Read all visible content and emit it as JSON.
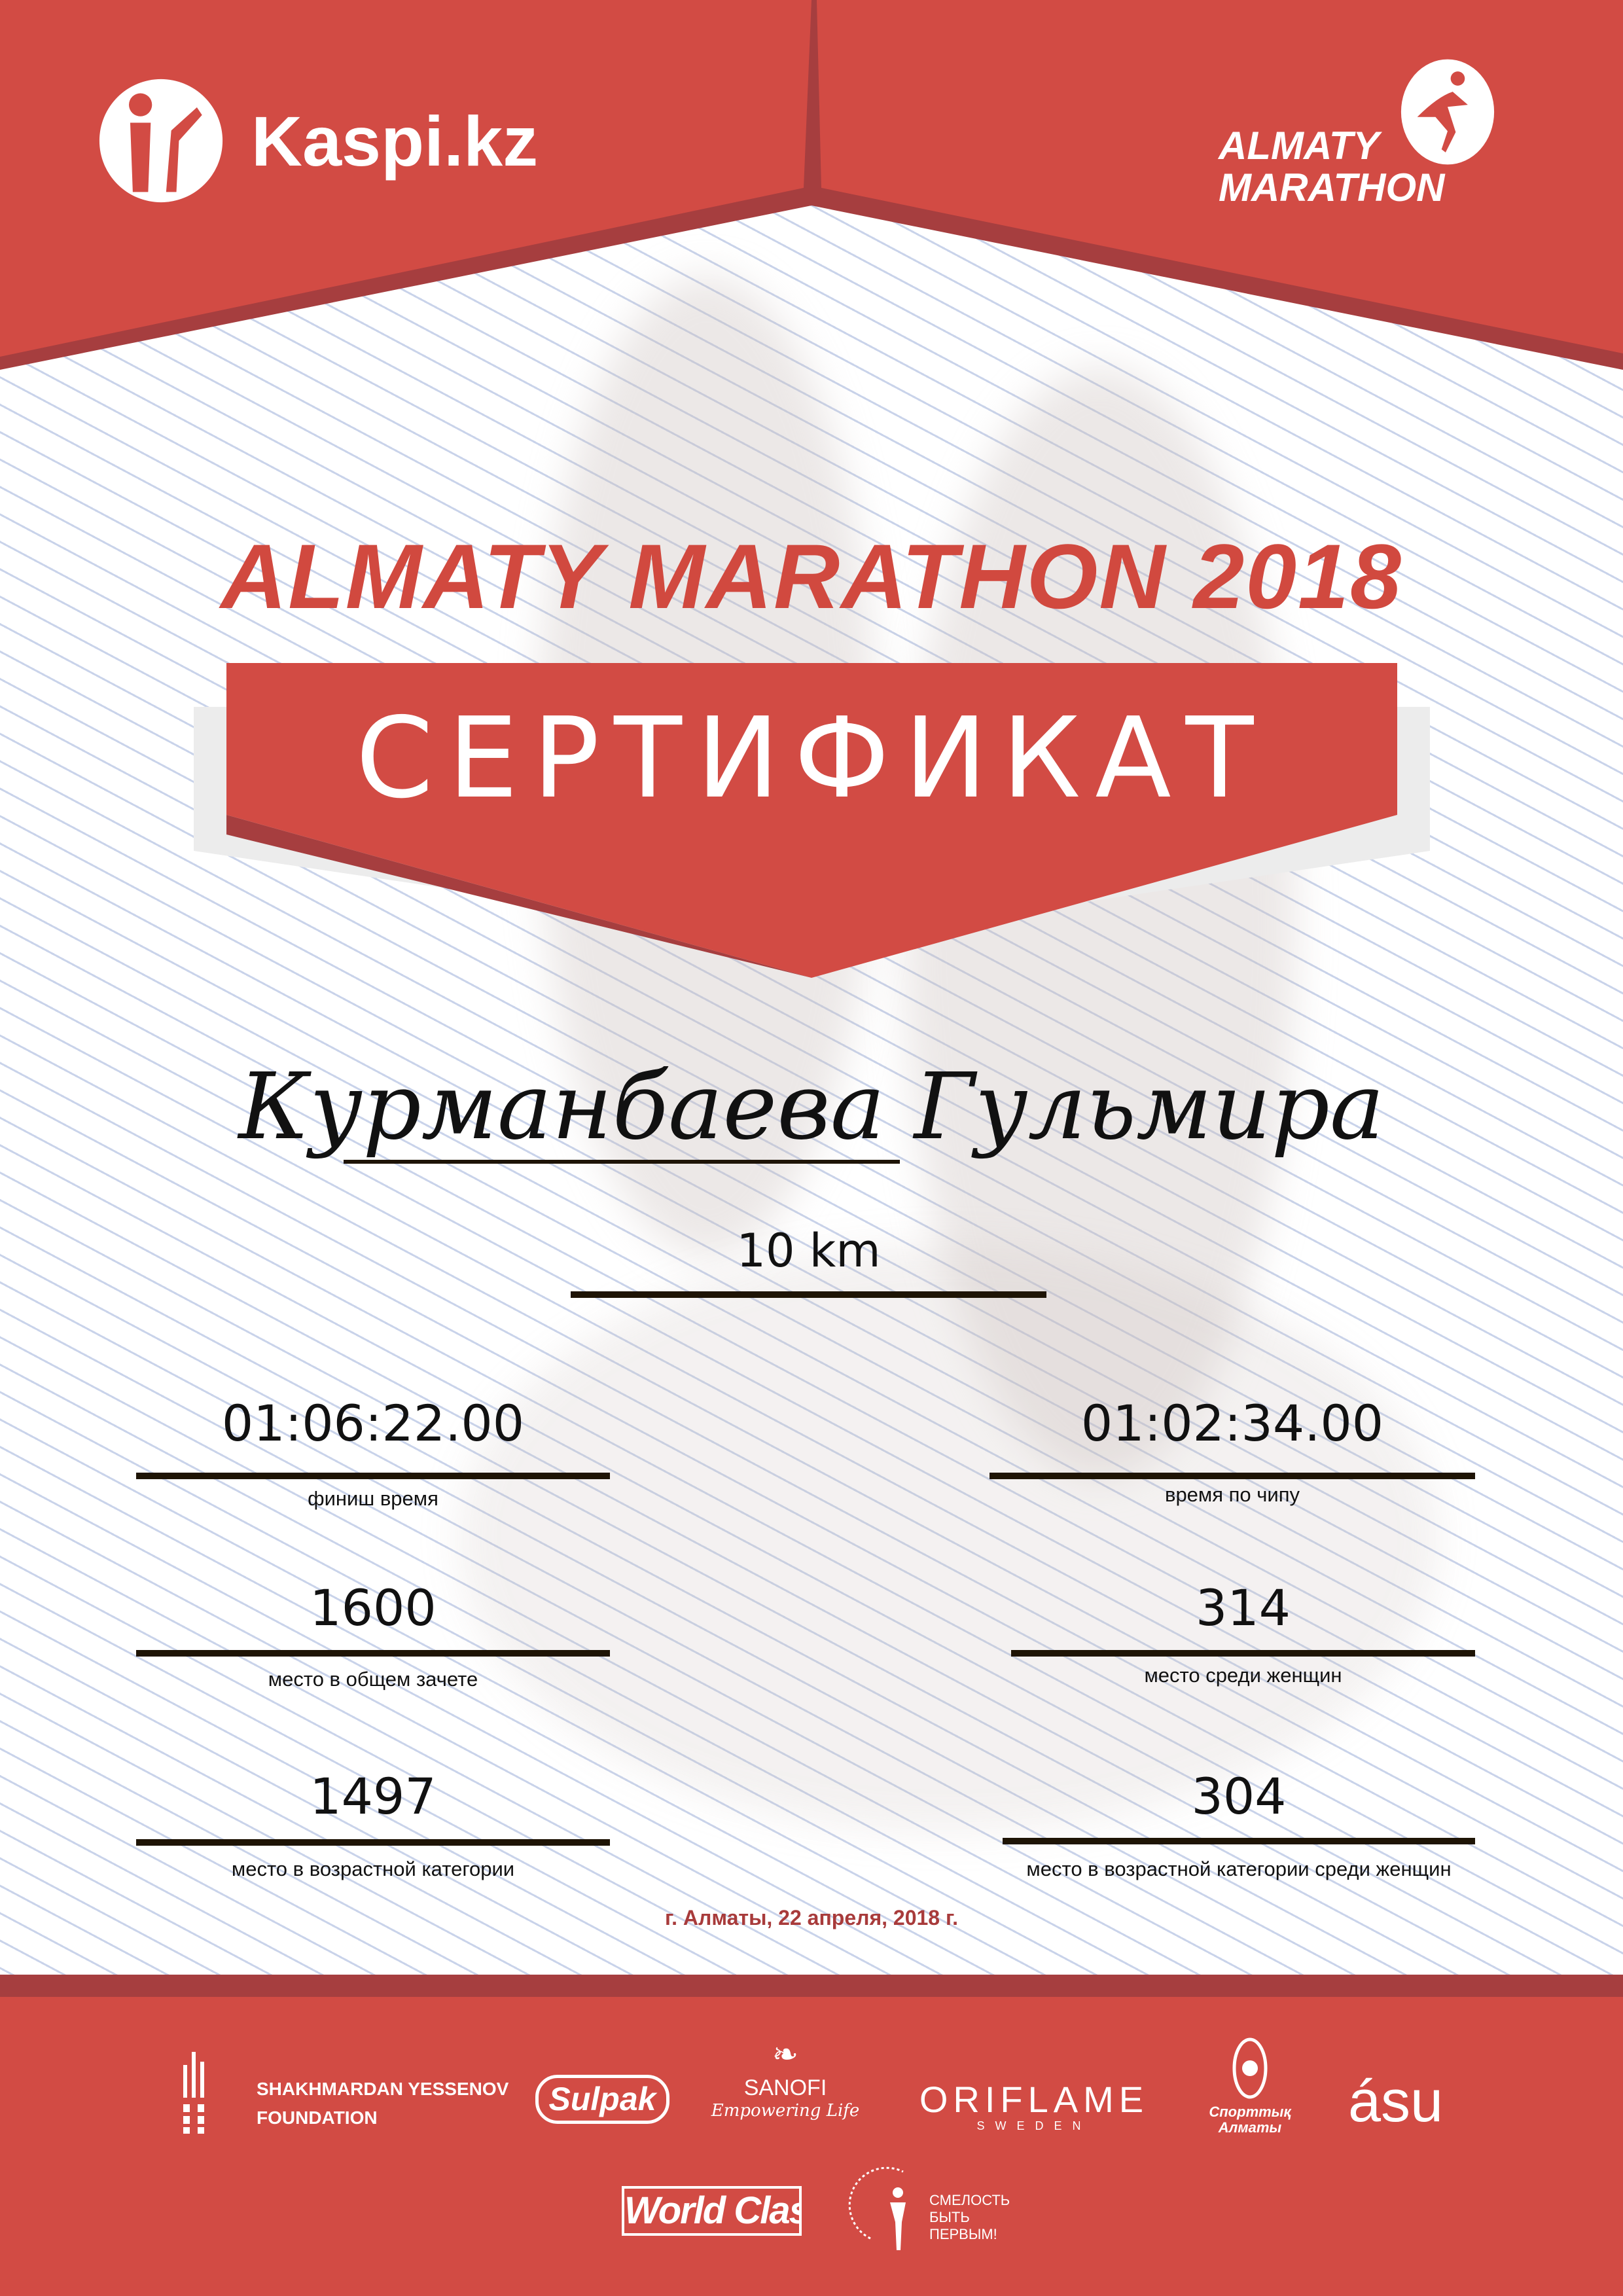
{
  "header": {
    "sponsor_logo": "Kaspi.kz",
    "event_logo_line1": "ALMATY",
    "event_logo_line2": "MARATHON",
    "colors": {
      "red": "#d24b44",
      "dark_red": "#a63e3f"
    }
  },
  "certificate": {
    "event_title": "ALMATY MARATHON 2018",
    "heading": "СЕРТИФИКАТ",
    "participant_name": "Курманбаева Гульмира",
    "distance": "10 km",
    "results": [
      {
        "value": "01:06:22.00",
        "label": "финиш время"
      },
      {
        "value": "01:02:34.00",
        "label": "время по чипу"
      },
      {
        "value": "1600",
        "label": "место в общем зачете"
      },
      {
        "value": "314",
        "label": "место среди женщин"
      },
      {
        "value": "1497",
        "label": "место в возрастной категории"
      },
      {
        "value": "304",
        "label": "место в возрастной категории среди женщин"
      }
    ],
    "place_date": "г. Алматы, 22 апреля, 2018 г."
  },
  "partners": {
    "yessenov_line1": "SHAKHMARDAN YESSENOV",
    "yessenov_line2": "FOUNDATION",
    "sulpak": "Sulpak",
    "sanofi": "SANOFI",
    "sanofi_tagline": "Empowering Life",
    "oriflame": "ORIFLAME",
    "oriflame_sub": "SWEDEN",
    "sport_almaty": "Спорттық Алматы",
    "asu": "ásu",
    "world_class": "World Class",
    "fund_line1": "СМЕЛОСТЬ",
    "fund_line2": "БЫТЬ",
    "fund_line3": "ПЕРВЫМ!"
  }
}
